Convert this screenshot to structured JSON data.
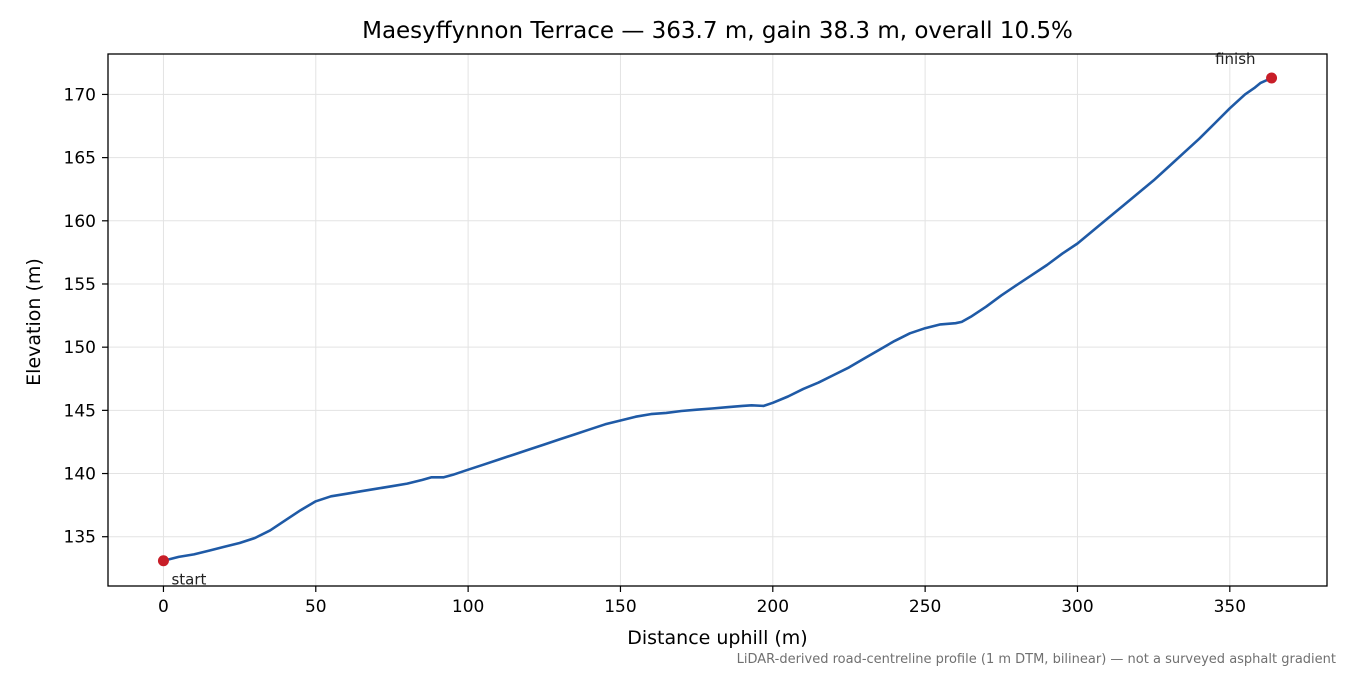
{
  "chart_data": {
    "type": "line",
    "title": "Maesyffynnon Terrace — 363.7 m, gain 38.3 m, overall 10.5%",
    "xlabel": "Distance uphill (m)",
    "ylabel": "Elevation (m)",
    "footnote": "LiDAR-derived road-centreline profile (1 m DTM, bilinear) — not a surveyed asphalt gradient",
    "xlim": [
      -18.2,
      381.9
    ],
    "ylim": [
      131.1,
      173.2
    ],
    "xticks": [
      0,
      50,
      100,
      150,
      200,
      250,
      300,
      350
    ],
    "yticks": [
      135,
      140,
      145,
      150,
      155,
      160,
      165,
      170
    ],
    "grid": true,
    "line_color": "#1f5aa6",
    "marker_color": "#c81e28",
    "series": [
      {
        "x": [
          0,
          5,
          10,
          15,
          20,
          25,
          30,
          35,
          40,
          45,
          50,
          55,
          60,
          65,
          70,
          75,
          80,
          85,
          88,
          92,
          95,
          100,
          105,
          110,
          115,
          120,
          125,
          130,
          135,
          140,
          145,
          150,
          155,
          160,
          165,
          170,
          175,
          180,
          185,
          190,
          193,
          197,
          200,
          205,
          210,
          215,
          220,
          225,
          230,
          235,
          240,
          245,
          250,
          255,
          260,
          262,
          265,
          270,
          275,
          280,
          285,
          290,
          295,
          300,
          305,
          310,
          315,
          320,
          325,
          330,
          335,
          340,
          345,
          350,
          355,
          358,
          360,
          363.7
        ],
        "y": [
          133.1,
          133.4,
          133.6,
          133.9,
          134.2,
          134.5,
          134.9,
          135.5,
          136.3,
          137.1,
          137.8,
          138.2,
          138.4,
          138.6,
          138.8,
          139.0,
          139.2,
          139.5,
          139.7,
          139.7,
          139.9,
          140.3,
          140.7,
          141.1,
          141.5,
          141.9,
          142.3,
          142.7,
          143.1,
          143.5,
          143.9,
          144.2,
          144.5,
          144.7,
          144.8,
          144.95,
          145.05,
          145.15,
          145.25,
          145.35,
          145.4,
          145.35,
          145.6,
          146.1,
          146.7,
          147.2,
          147.8,
          148.4,
          149.1,
          149.8,
          150.5,
          151.1,
          151.5,
          151.8,
          151.9,
          152.0,
          152.4,
          153.2,
          154.1,
          154.9,
          155.7,
          156.5,
          157.4,
          158.2,
          159.2,
          160.2,
          161.2,
          162.2,
          163.2,
          164.3,
          165.4,
          166.5,
          167.7,
          168.9,
          170.0,
          170.5,
          170.9,
          171.3
        ]
      }
    ],
    "markers": [
      {
        "label": "start",
        "x": 0,
        "y": 133.1
      },
      {
        "label": "finish",
        "x": 363.7,
        "y": 171.3
      }
    ]
  }
}
